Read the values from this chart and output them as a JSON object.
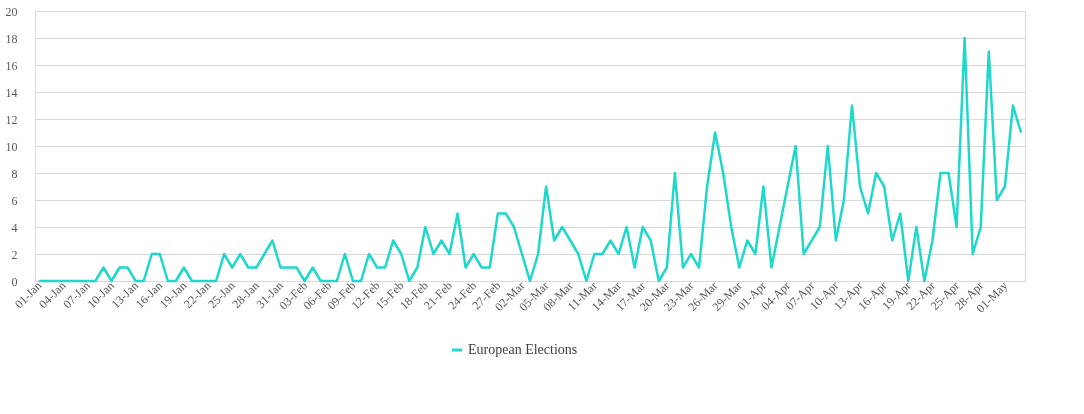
{
  "chart_data": {
    "type": "line",
    "categories": [
      "01-Jan",
      null,
      null,
      "04-Jan",
      null,
      null,
      "07-Jan",
      null,
      null,
      "10-Jan",
      null,
      null,
      "13-Jan",
      null,
      null,
      "16-Jan",
      null,
      null,
      "19-Jan",
      null,
      null,
      "22-Jan",
      null,
      null,
      "25-Jan",
      null,
      null,
      "28-Jan",
      null,
      null,
      "31-Jan",
      null,
      null,
      "03-Feb",
      null,
      null,
      "06-Feb",
      null,
      null,
      "09-Feb",
      null,
      null,
      "12-Feb",
      null,
      null,
      "15-Feb",
      null,
      null,
      "18-Feb",
      null,
      null,
      "21-Feb",
      null,
      null,
      "24-Feb",
      null,
      null,
      "27-Feb",
      null,
      null,
      "02-Mar",
      null,
      null,
      "05-Mar",
      null,
      null,
      "08-Mar",
      null,
      null,
      "11-Mar",
      null,
      null,
      "14-Mar",
      null,
      null,
      "17-Mar",
      null,
      null,
      "20-Mar",
      null,
      null,
      "23-Mar",
      null,
      null,
      "26-Mar",
      null,
      null,
      "29-Mar",
      null,
      null,
      "01-Apr",
      null,
      null,
      "04-Apr",
      null,
      null,
      "07-Apr",
      null,
      null,
      "10-Apr",
      null,
      null,
      "13-Apr",
      null,
      null,
      "16-Apr",
      null,
      null,
      "19-Apr",
      null,
      null,
      "22-Apr",
      null,
      null,
      "25-Apr",
      null,
      null,
      "28-Apr",
      null,
      null,
      "01-May",
      null,
      null
    ],
    "series": [
      {
        "name": "European Elections",
        "color": "#1ed8cc",
        "values": [
          0,
          0,
          0,
          0,
          0,
          0,
          0,
          0,
          1,
          0,
          1,
          1,
          0,
          0,
          2,
          2,
          0,
          0,
          1,
          0,
          0,
          0,
          0,
          2,
          1,
          2,
          1,
          1,
          2,
          3,
          1,
          1,
          1,
          0,
          1,
          0,
          0,
          0,
          2,
          0,
          0,
          2,
          1,
          1,
          3,
          2,
          0,
          1,
          4,
          2,
          3,
          2,
          5,
          1,
          2,
          1,
          1,
          5,
          5,
          4,
          2,
          0,
          2,
          7,
          3,
          4,
          3,
          2,
          0,
          2,
          2,
          3,
          2,
          4,
          1,
          4,
          3,
          0,
          1,
          8,
          1,
          2,
          1,
          7,
          11,
          8,
          4,
          1,
          3,
          2,
          7,
          1,
          4,
          7,
          10,
          2,
          3,
          4,
          10,
          3,
          6,
          13,
          7,
          5,
          8,
          7,
          3,
          5,
          0,
          4,
          0,
          3,
          8,
          8,
          4,
          18,
          2,
          4,
          17,
          6,
          7,
          13,
          11
        ]
      }
    ],
    "ylim": [
      0,
      20
    ],
    "yticks": [
      0,
      2,
      4,
      6,
      8,
      10,
      12,
      14,
      16,
      18,
      20
    ],
    "grid": "y",
    "legend": "bottom",
    "marker": "none",
    "line_style": "solid"
  }
}
